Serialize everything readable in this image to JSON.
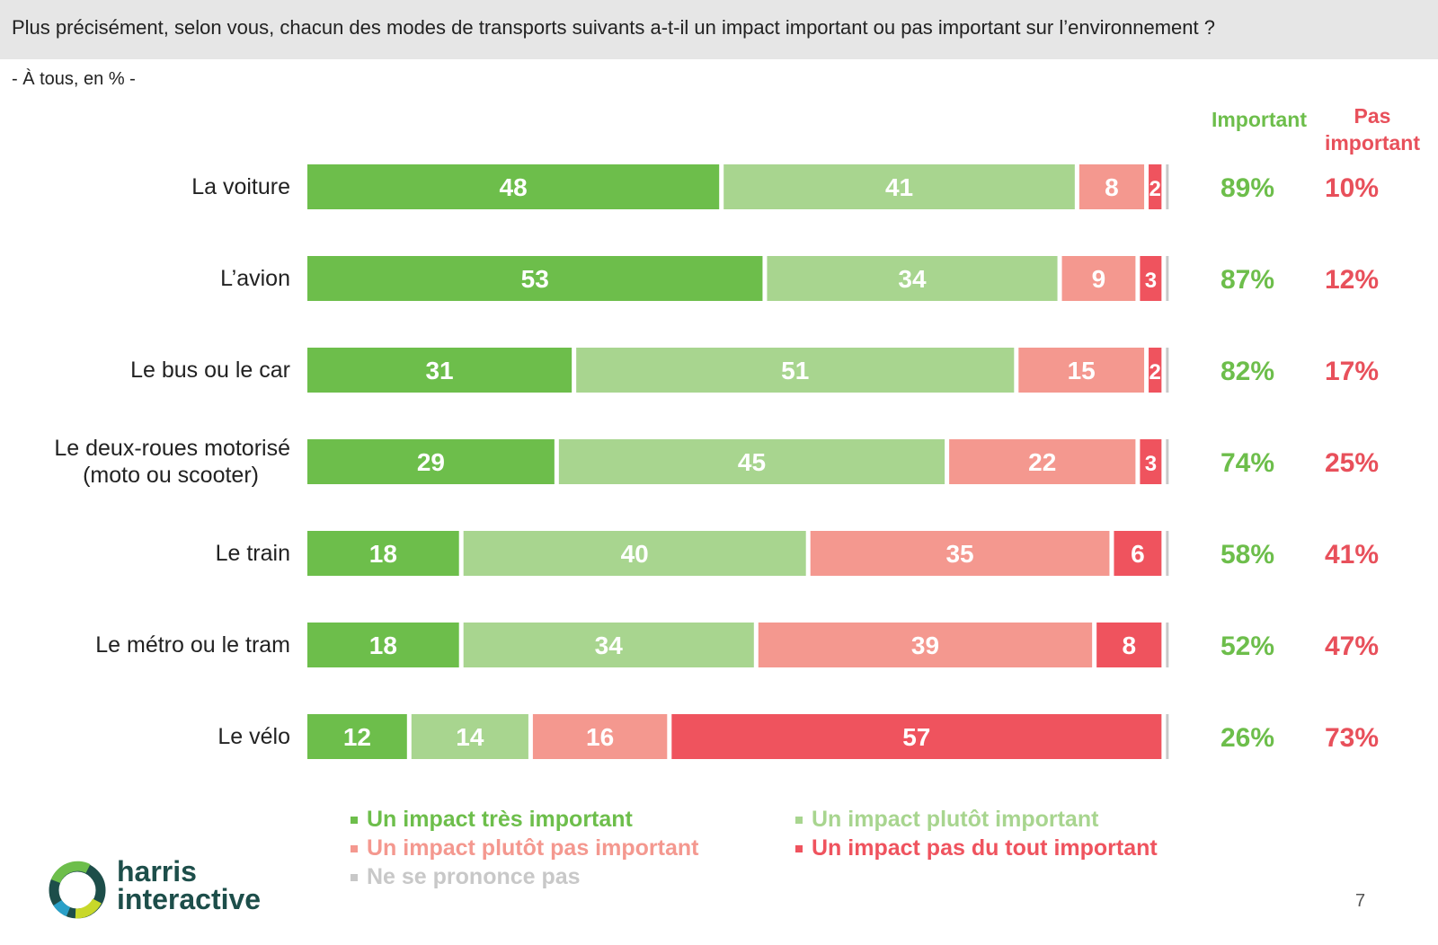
{
  "header": {
    "question": "Plus précisément, selon vous, chacun des modes de transports suivants a-t-il un impact important ou pas important sur l’environnement ?",
    "base": "- À tous, en % -"
  },
  "columns": {
    "important": "Important",
    "pas_important_line1": "Pas",
    "pas_important_line2": "important"
  },
  "colors": {
    "tres_important": "#6dbe4b",
    "plutot_important": "#a8d58f",
    "plutot_pas_important": "#f4988f",
    "pas_du_tout": "#ef535e",
    "nspp": "#c8c8c8",
    "important_text": "#6dbe4b",
    "pas_important_text": "#e8505b"
  },
  "chart_data": {
    "type": "bar",
    "orientation": "horizontal-stacked-100",
    "categories": [
      [
        "La voiture"
      ],
      [
        "L’avion"
      ],
      [
        "Le bus ou le car"
      ],
      [
        "Le deux-roues motorisé",
        "(moto ou scooter)"
      ],
      [
        "Le train"
      ],
      [
        "Le métro ou le tram"
      ],
      [
        "Le vélo"
      ]
    ],
    "series": [
      {
        "name": "Un impact très important",
        "values": [
          48,
          53,
          31,
          29,
          18,
          18,
          12
        ]
      },
      {
        "name": "Un impact plutôt important",
        "values": [
          41,
          34,
          51,
          45,
          40,
          34,
          14
        ]
      },
      {
        "name": "Un impact plutôt pas important",
        "values": [
          8,
          9,
          15,
          22,
          35,
          39,
          16
        ]
      },
      {
        "name": "Un impact pas du tout important",
        "values": [
          2,
          3,
          2,
          3,
          6,
          8,
          57
        ]
      },
      {
        "name": "Ne se prononce pas",
        "values": [
          1,
          1,
          1,
          1,
          1,
          1,
          1
        ]
      }
    ],
    "totals": {
      "important": [
        "89%",
        "87%",
        "82%",
        "74%",
        "58%",
        "52%",
        "26%"
      ],
      "pas_important": [
        "10%",
        "12%",
        "17%",
        "25%",
        "41%",
        "47%",
        "73%"
      ]
    },
    "xlim": [
      0,
      100
    ]
  },
  "legend": [
    "Un impact très important",
    "Un impact plutôt important",
    "Un impact plutôt pas important",
    "Un impact pas du tout important",
    "Ne se prononce pas"
  ],
  "logo": {
    "line1": "harris",
    "line2": "interactive"
  },
  "page_number": "7"
}
